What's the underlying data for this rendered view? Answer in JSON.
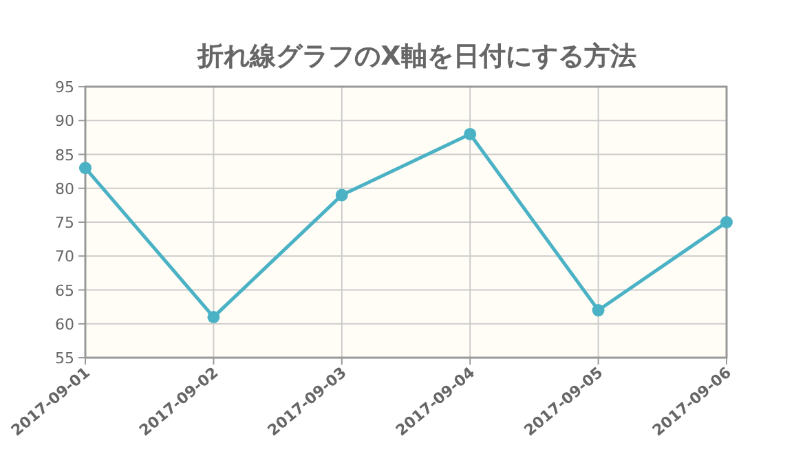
{
  "chart_data": {
    "type": "line",
    "title": "折れ線グラフのX軸を日付にする方法",
    "x": [
      "2017-09-01",
      "2017-09-02",
      "2017-09-03",
      "2017-09-04",
      "2017-09-05",
      "2017-09-06"
    ],
    "series": [
      {
        "color": "#4bb2c5",
        "values": [
          83,
          61,
          79,
          88,
          62,
          75
        ]
      }
    ],
    "xlim": [
      "2017-09-01",
      "2017-09-06"
    ],
    "xticks": [
      "2017-09-01",
      "2017-09-02",
      "2017-09-03",
      "2017-09-04",
      "2017-09-05",
      "2017-09-06"
    ],
    "ylim": [
      55,
      95
    ],
    "yticks": [
      55,
      60,
      65,
      70,
      75,
      80,
      85,
      90,
      95
    ],
    "grid": true,
    "marker": "circle",
    "line_style": "solid"
  }
}
